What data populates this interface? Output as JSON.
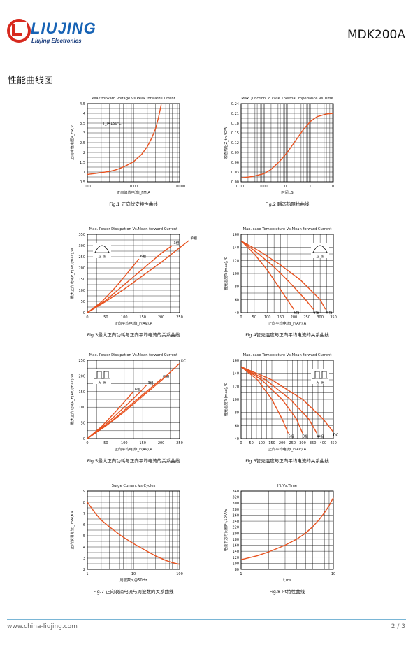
{
  "header": {
    "logo_text": "LIUJING",
    "logo_tagline": "Liujing  Electronics",
    "model": "MDK200A"
  },
  "section_title": "性能曲线图",
  "footer": {
    "url": "www.china-liujing.com",
    "page": "2 / 3"
  },
  "colors": {
    "curve": "#e8521f",
    "grid": "#000000",
    "rule": "#7ab6d6",
    "logo_red": "#d72a1f",
    "logo_blue": "#1763b5"
  },
  "chart_data": [
    {
      "id": "fig1",
      "type": "line",
      "title": "Peak forward Voltage Vs.Peak forward Current",
      "xlabel": "正向峰值电流I_FM,A",
      "ylabel": "正向峰值电压V_FM,V",
      "xscale": "log",
      "xlim": [
        100,
        10000
      ],
      "ylim": [
        0.5,
        4.5
      ],
      "xticks": [
        "100",
        "1000",
        "10000"
      ],
      "yticks": [
        "0.5",
        "1",
        "1.5",
        "2",
        "2.5",
        "3",
        "3.5",
        "4",
        "4.5"
      ],
      "annotation": "T_j=150°C",
      "series": [
        {
          "x": [
            100,
            150,
            200,
            300,
            400,
            500,
            700,
            1000,
            1500,
            2000,
            2500,
            3000,
            3500,
            4000
          ],
          "y": [
            0.88,
            0.93,
            0.97,
            1.03,
            1.1,
            1.18,
            1.33,
            1.52,
            1.9,
            2.3,
            2.75,
            3.2,
            3.8,
            4.45
          ]
        }
      ],
      "caption": "Fig.1 正向伏安特性曲线"
    },
    {
      "id": "fig2",
      "type": "line",
      "title": "Max. junction To case Thermal Impedance Vs.Time",
      "xlabel": "时间t,S",
      "ylabel": "瞬态热阻Z_th,℃/W",
      "xscale": "log",
      "xlim": [
        0.001,
        10
      ],
      "ylim": [
        0,
        0.24
      ],
      "xticks": [
        "0.001",
        "0.01",
        "0.1",
        "1",
        "10"
      ],
      "yticks": [
        "0.00",
        "0.03",
        "0.06",
        "0.09",
        "0.12",
        "0.15",
        "0.18",
        "0.21",
        "0.24"
      ],
      "series": [
        {
          "x": [
            0.001,
            0.003,
            0.01,
            0.02,
            0.05,
            0.1,
            0.2,
            0.5,
            1,
            2,
            5,
            10
          ],
          "y": [
            0.012,
            0.016,
            0.025,
            0.038,
            0.065,
            0.09,
            0.12,
            0.16,
            0.185,
            0.2,
            0.208,
            0.21
          ]
        }
      ],
      "caption": "Fig.2  瞬态热阻抗曲线"
    },
    {
      "id": "fig3",
      "type": "line",
      "title": "Max. Power Dissipation Vs.Mean forward Current",
      "xlabel": "正向平均电流I_F(AV),A",
      "ylabel": "最大正向功耗P_F(AV)(max),W",
      "xlim": [
        0,
        250
      ],
      "ylim": [
        0,
        350
      ],
      "xticks": [
        "0",
        "50",
        "100",
        "150",
        "200",
        "250"
      ],
      "yticks": [
        "0",
        "50",
        "100",
        "150",
        "200",
        "250",
        "300",
        "350"
      ],
      "inset_label": "正  弦",
      "series": [
        {
          "name": "6相",
          "x": [
            0,
            40,
            80,
            110,
            140
          ],
          "y": [
            0,
            50,
            120,
            180,
            240
          ]
        },
        {
          "name": "3相",
          "x": [
            0,
            50,
            100,
            150,
            200,
            230
          ],
          "y": [
            0,
            55,
            125,
            195,
            265,
            300
          ]
        },
        {
          "name": "单相",
          "x": [
            0,
            50,
            100,
            150,
            200,
            250,
            275
          ],
          "y": [
            0,
            50,
            105,
            165,
            225,
            290,
            322
          ]
        }
      ],
      "caption": "Fig.3最大正向功耗与正向平均电流的关系曲线"
    },
    {
      "id": "fig4",
      "type": "line",
      "title": "Max. case Temperature Vs.Mean forward Current",
      "xlabel": "正向平均电流I_F(AV),A",
      "ylabel": "管壳温度Tc(max),℃",
      "xlim": [
        0,
        350
      ],
      "ylim": [
        40,
        160
      ],
      "xticks": [
        "0",
        "50",
        "100",
        "150",
        "200",
        "250",
        "300",
        "350"
      ],
      "yticks": [
        "40",
        "60",
        "80",
        "100",
        "120",
        "140",
        "160"
      ],
      "inset_label": "正  弦",
      "series": [
        {
          "name": "6相",
          "x": [
            0,
            50,
            100,
            150,
            200
          ],
          "y": [
            150,
            130,
            105,
            75,
            45
          ]
        },
        {
          "name": "3相",
          "x": [
            0,
            60,
            120,
            180,
            240,
            275
          ],
          "y": [
            150,
            132,
            112,
            88,
            62,
            45
          ]
        },
        {
          "name": "单相",
          "x": [
            0,
            75,
            150,
            225,
            300,
            320
          ],
          "y": [
            150,
            133,
            113,
            90,
            60,
            45
          ]
        }
      ],
      "caption": "Fig.4管壳温度与正向平均电流的关系曲线"
    },
    {
      "id": "fig5",
      "type": "line",
      "title": "Max. Power Dissipation Vs.Mean forward Current",
      "xlabel": "正向平均电流I_F(AV),A",
      "ylabel": "最大正向功耗P_F(AV)(max),W",
      "xlim": [
        0,
        250
      ],
      "ylim": [
        0,
        250
      ],
      "xticks": [
        "0",
        "50",
        "100",
        "150",
        "200",
        "250"
      ],
      "yticks": [
        "0",
        "50",
        "100",
        "150",
        "200",
        "250"
      ],
      "inset_label": "方  波",
      "series": [
        {
          "name": "6相",
          "x": [
            0,
            40,
            80,
            110,
            125
          ],
          "y": [
            0,
            40,
            90,
            130,
            150
          ]
        },
        {
          "name": "3相",
          "x": [
            0,
            50,
            100,
            140,
            160
          ],
          "y": [
            0,
            45,
            100,
            145,
            170
          ]
        },
        {
          "name": "单相",
          "x": [
            0,
            60,
            120,
            170,
            200
          ],
          "y": [
            0,
            50,
            110,
            160,
            190
          ]
        },
        {
          "name": "DC",
          "x": [
            0,
            50,
            100,
            150,
            200,
            250
          ],
          "y": [
            0,
            40,
            85,
            135,
            185,
            240
          ]
        }
      ],
      "caption": "Fig.5最大正向功耗与正向平均电流的关系曲线"
    },
    {
      "id": "fig6",
      "type": "line",
      "title": "Max. case Temperature Vs.Mean forward Current",
      "xlabel": "正向平均电流I_F(AV),A",
      "ylabel": "管壳温度Tc(max),℃",
      "xlim": [
        0,
        450
      ],
      "ylim": [
        40,
        160
      ],
      "xticks": [
        "0",
        "50",
        "100",
        "150",
        "200",
        "250",
        "300",
        "350",
        "400",
        "450"
      ],
      "yticks": [
        "40",
        "60",
        "80",
        "100",
        "120",
        "140",
        "160"
      ],
      "inset_label": "方  波",
      "series": [
        {
          "name": "6相",
          "x": [
            0,
            80,
            150,
            200,
            230
          ],
          "y": [
            150,
            130,
            100,
            70,
            48
          ]
        },
        {
          "name": "3相",
          "x": [
            0,
            100,
            200,
            270,
            300
          ],
          "y": [
            150,
            130,
            100,
            70,
            48
          ]
        },
        {
          "name": "单相",
          "x": [
            0,
            120,
            240,
            330,
            370
          ],
          "y": [
            150,
            130,
            100,
            70,
            48
          ]
        },
        {
          "name": "DC",
          "x": [
            0,
            150,
            300,
            400,
            450
          ],
          "y": [
            150,
            130,
            100,
            70,
            50
          ]
        }
      ],
      "caption": "Fig.6管壳温度与正向平均电流的关系曲线"
    },
    {
      "id": "fig7",
      "type": "line",
      "title": "Surge Current Vs.Cycles",
      "xlabel": "周波数n,@50Hz",
      "ylabel": "正向浪涌电流I_TSM,KA",
      "xscale": "log",
      "xlim": [
        1,
        100
      ],
      "ylim": [
        2,
        9
      ],
      "xticks": [
        "1",
        "10",
        "100"
      ],
      "yticks": [
        "2",
        "3",
        "4",
        "5",
        "6",
        "7",
        "8",
        "9"
      ],
      "series": [
        {
          "x": [
            1,
            1.5,
            2,
            3,
            5,
            7,
            10,
            20,
            30,
            50,
            70,
            100
          ],
          "y": [
            8.0,
            7.0,
            6.4,
            5.8,
            5.1,
            4.7,
            4.3,
            3.6,
            3.2,
            2.8,
            2.6,
            2.45
          ]
        }
      ],
      "caption": "Fig.7 正向浪涌电流与周波数的关系曲线"
    },
    {
      "id": "fig8",
      "type": "line",
      "title": "I²t Vs.Time",
      "xlabel": "t,ms",
      "ylabel": "电流平方时间积I²t,10³A²s",
      "xscale": "log",
      "xlim": [
        1,
        10
      ],
      "ylim": [
        80,
        340
      ],
      "xticks": [
        "1",
        "10"
      ],
      "yticks": [
        "80",
        "100",
        "120",
        "140",
        "160",
        "180",
        "200",
        "220",
        "240",
        "260",
        "280",
        "300",
        "320",
        "340"
      ],
      "series": [
        {
          "x": [
            1,
            1.5,
            2,
            3,
            4,
            5,
            6,
            7,
            8,
            9,
            10
          ],
          "y": [
            112,
            125,
            138,
            160,
            180,
            200,
            222,
            245,
            268,
            292,
            318
          ]
        }
      ],
      "caption": "Fig.8 I²t特性曲线"
    }
  ]
}
